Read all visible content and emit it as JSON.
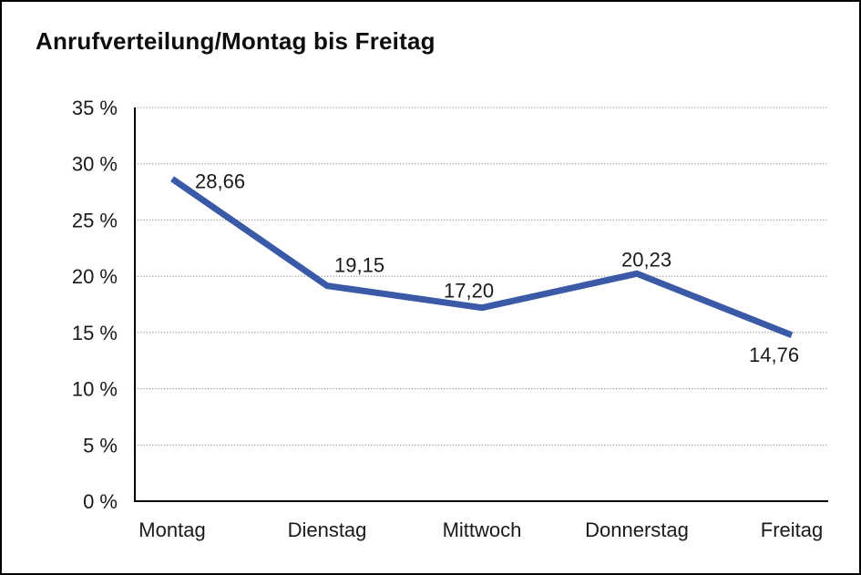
{
  "chart_data": {
    "type": "line",
    "title": "Anrufverteilung/Montag bis Freitag",
    "categories": [
      "Montag",
      "Dienstag",
      "Mittwoch",
      "Donnerstag",
      "Freitag"
    ],
    "series": [
      {
        "name": "Anrufverteilung",
        "values": [
          28.66,
          19.15,
          17.2,
          20.23,
          14.76
        ]
      }
    ],
    "point_labels": [
      "28,66",
      "19,15",
      "17,20",
      "20,23",
      "14,76"
    ],
    "ytick_labels": [
      "0 %",
      "5 %",
      "10 %",
      "15 %",
      "20 %",
      "25 %",
      "30 %",
      "35 %"
    ],
    "ylim": [
      0,
      35
    ],
    "ytick_step": 5,
    "xlabel": "",
    "ylabel": "",
    "legend": "none",
    "grid": "horizontal-dotted",
    "colors": {
      "line": "#3A59A6",
      "grid": "#6b6b6b",
      "axis": "#000000",
      "text": "#1a1a1a",
      "background": "#ffffff"
    }
  }
}
